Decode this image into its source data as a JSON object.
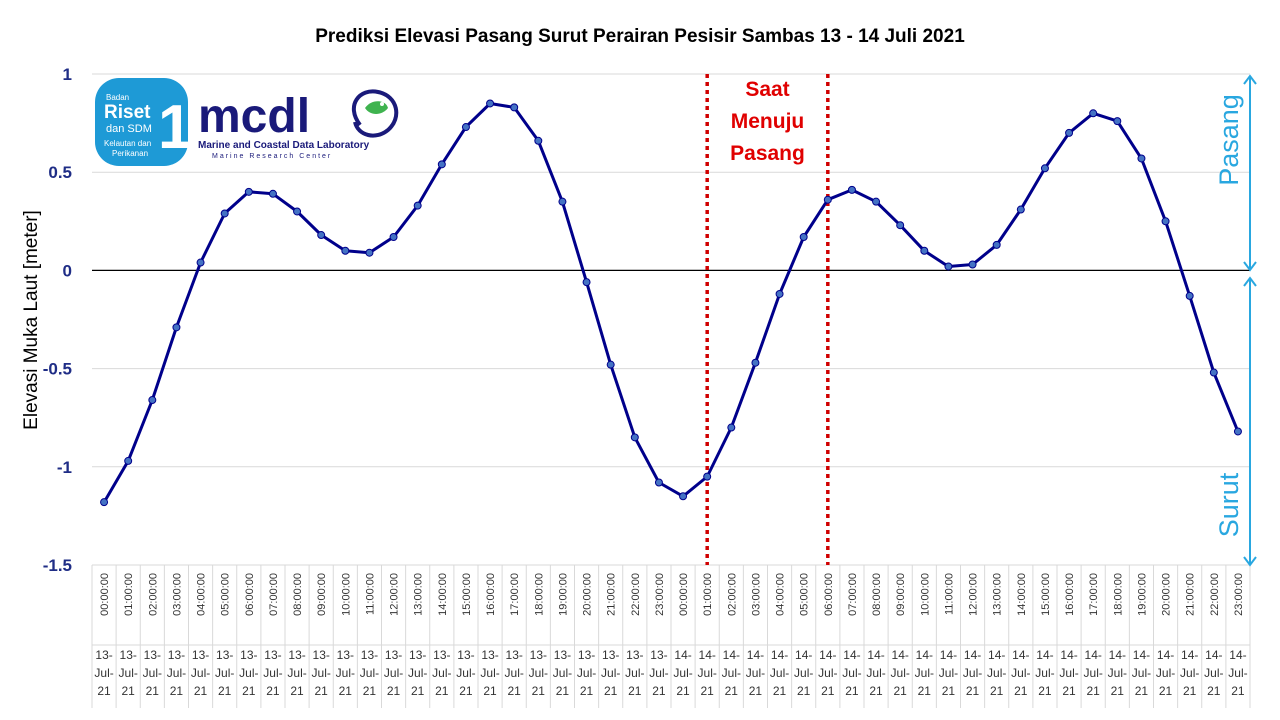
{
  "chart_data": {
    "type": "line",
    "title": "Prediksi Elevasi Pasang Surut Perairan Pesisir Sambas 13 - 14 Juli 2021",
    "ylabel": "Elevasi Muka Laut [meter]",
    "xlabel": "",
    "ylim": [
      -1.5,
      1
    ],
    "yticks": [
      "1",
      "0.5",
      "0",
      "-0.5",
      "-1",
      "-1.5"
    ],
    "ytick_values": [
      1,
      0.5,
      0,
      -0.5,
      -1,
      -1.5
    ],
    "grid": true,
    "line_color": "#00008b",
    "times": [
      "00:00:00",
      "01:00:00",
      "02:00:00",
      "03:00:00",
      "04:00:00",
      "05:00:00",
      "06:00:00",
      "07:00:00",
      "08:00:00",
      "09:00:00",
      "10:00:00",
      "11:00:00",
      "12:00:00",
      "13:00:00",
      "14:00:00",
      "15:00:00",
      "16:00:00",
      "17:00:00",
      "18:00:00",
      "19:00:00",
      "20:00:00",
      "21:00:00",
      "22:00:00",
      "23:00:00",
      "00:00:00",
      "01:00:00",
      "02:00:00",
      "03:00:00",
      "04:00:00",
      "05:00:00",
      "06:00:00",
      "07:00:00",
      "08:00:00",
      "09:00:00",
      "10:00:00",
      "11:00:00",
      "12:00:00",
      "13:00:00",
      "14:00:00",
      "15:00:00",
      "16:00:00",
      "17:00:00",
      "18:00:00",
      "19:00:00",
      "20:00:00",
      "21:00:00",
      "22:00:00",
      "23:00:00"
    ],
    "dates": [
      "13-Jul-21",
      "13-Jul-21",
      "13-Jul-21",
      "13-Jul-21",
      "13-Jul-21",
      "13-Jul-21",
      "13-Jul-21",
      "13-Jul-21",
      "13-Jul-21",
      "13-Jul-21",
      "13-Jul-21",
      "13-Jul-21",
      "13-Jul-21",
      "13-Jul-21",
      "13-Jul-21",
      "13-Jul-21",
      "13-Jul-21",
      "13-Jul-21",
      "13-Jul-21",
      "13-Jul-21",
      "13-Jul-21",
      "13-Jul-21",
      "13-Jul-21",
      "13-Jul-21",
      "14-Jul-21",
      "14-Jul-21",
      "14-Jul-21",
      "14-Jul-21",
      "14-Jul-21",
      "14-Jul-21",
      "14-Jul-21",
      "14-Jul-21",
      "14-Jul-21",
      "14-Jul-21",
      "14-Jul-21",
      "14-Jul-21",
      "14-Jul-21",
      "14-Jul-21",
      "14-Jul-21",
      "14-Jul-21",
      "14-Jul-21",
      "14-Jul-21",
      "14-Jul-21",
      "14-Jul-21",
      "14-Jul-21",
      "14-Jul-21",
      "14-Jul-21",
      "14-Jul-21"
    ],
    "series": [
      {
        "values": [
          -1.18,
          -0.97,
          -0.66,
          -0.29,
          0.04,
          0.29,
          0.4,
          0.39,
          0.3,
          0.18,
          0.1,
          0.09,
          0.17,
          0.33,
          0.54,
          0.73,
          0.85,
          0.83,
          0.66,
          0.35,
          -0.06,
          -0.48,
          -0.85,
          -1.08,
          -1.15,
          -1.05,
          -0.8,
          -0.47,
          -0.12,
          0.17,
          0.36,
          0.41,
          0.35,
          0.23,
          0.1,
          0.02,
          0.03,
          0.13,
          0.31,
          0.52,
          0.7,
          0.8,
          0.76,
          0.57,
          0.25,
          -0.13,
          -0.52,
          -0.82
        ]
      }
    ],
    "markers": [
      {
        "at_index": 25,
        "style": "dotted",
        "color": "#d00000"
      },
      {
        "at_index": 30,
        "style": "dotted",
        "color": "#d00000"
      }
    ],
    "annotation": {
      "lines": [
        "Saat",
        "Menuju",
        "Pasang"
      ],
      "color": "#e00000"
    },
    "side_labels": {
      "pasang": "Pasang",
      "surut": "Surut",
      "color": "#29a7e0"
    }
  },
  "logo": {
    "badge_lines": [
      "Badan",
      "Riset",
      "dan SDM",
      "Kelautan dan",
      "Perikanan"
    ],
    "badge_number": "1",
    "mcdl": "mcdl",
    "mcdl_sub": "Marine and Coastal Data Laboratory",
    "mcdl_sub2": "Marine Research Center"
  }
}
